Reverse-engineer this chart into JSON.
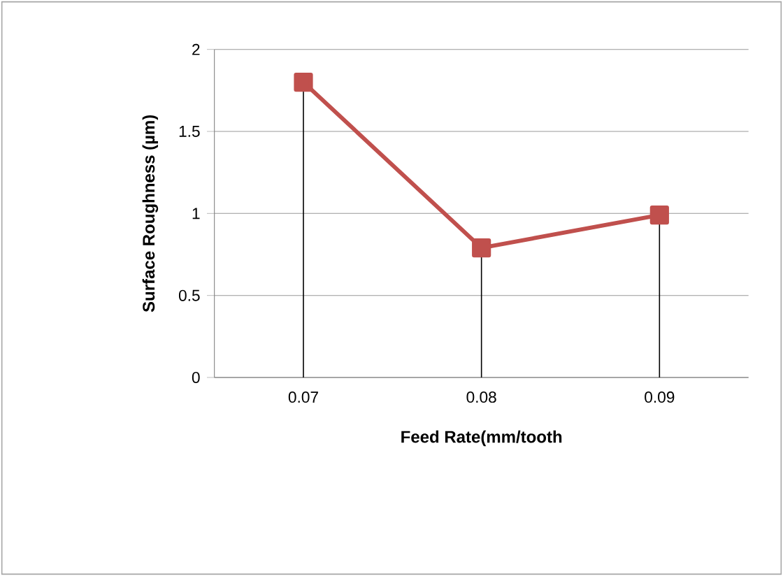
{
  "chart_data": {
    "type": "line",
    "xlabel": "Feed Rate(mm/tooth",
    "ylabel": "Surface Roughness  (µm)",
    "categories": [
      "0.07",
      "0.08",
      "0.09"
    ],
    "series": [
      {
        "color": "#c0504d",
        "values": [
          1.8,
          0.79,
          0.99
        ],
        "marker": "square",
        "errors": [
          [
            0,
            1.8
          ],
          [
            0,
            0.79
          ],
          [
            0,
            0.99
          ]
        ]
      }
    ],
    "ylim": [
      0,
      2
    ],
    "yticks": [
      0,
      0.5,
      1,
      1.5,
      2
    ],
    "grid": "y"
  }
}
